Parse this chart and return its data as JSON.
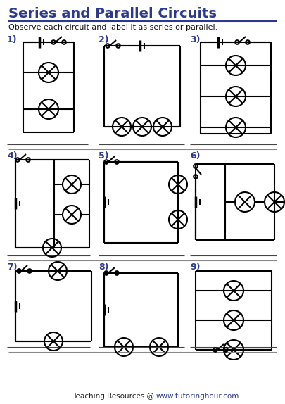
{
  "title": "Series and Parallel Circuits",
  "subtitle": "Observe each circuit and label it as series or parallel.",
  "title_color": "#2B3990",
  "label_color": "#2B3990",
  "footer_url_color": "#2B3990",
  "bg_color": "#ffffff",
  "line_color": "#000000"
}
